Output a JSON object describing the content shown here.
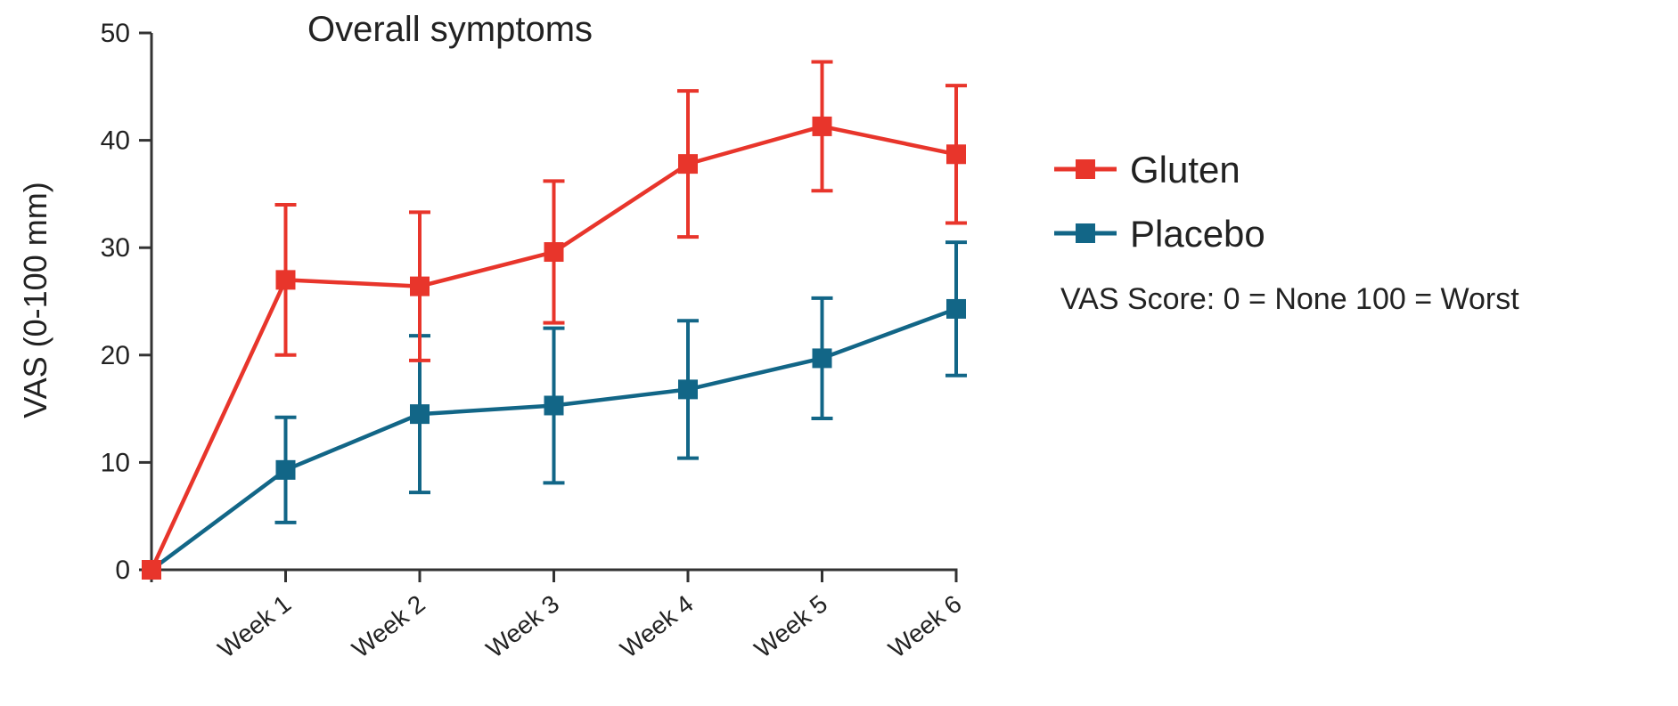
{
  "chart_data": {
    "type": "line",
    "title": "Overall symptoms",
    "xlabel": "",
    "ylabel": "VAS (0-100 mm)",
    "categories": [
      "",
      "Week 1",
      "Week 2",
      "Week 3",
      "Week 4",
      "Week 5",
      "Week 6"
    ],
    "yticks": [
      "0",
      "10",
      "20",
      "30",
      "40",
      "50"
    ],
    "ylim": [
      0,
      50
    ],
    "grid": false,
    "legend_position": "right",
    "note": "VAS Score: 0 = None 100 = Worst",
    "series": [
      {
        "name": "Gluten",
        "color": "#e8352b",
        "values": [
          0,
          27,
          26.4,
          29.6,
          37.8,
          41.3,
          38.7
        ],
        "error": [
          0,
          7,
          6.9,
          6.6,
          6.8,
          6.0,
          6.4
        ]
      },
      {
        "name": "Placebo",
        "color": "#126687",
        "values": [
          0,
          9.3,
          14.5,
          15.3,
          16.8,
          19.7,
          24.3
        ],
        "error": [
          0,
          4.9,
          7.3,
          7.2,
          6.4,
          5.6,
          6.2
        ]
      }
    ]
  }
}
